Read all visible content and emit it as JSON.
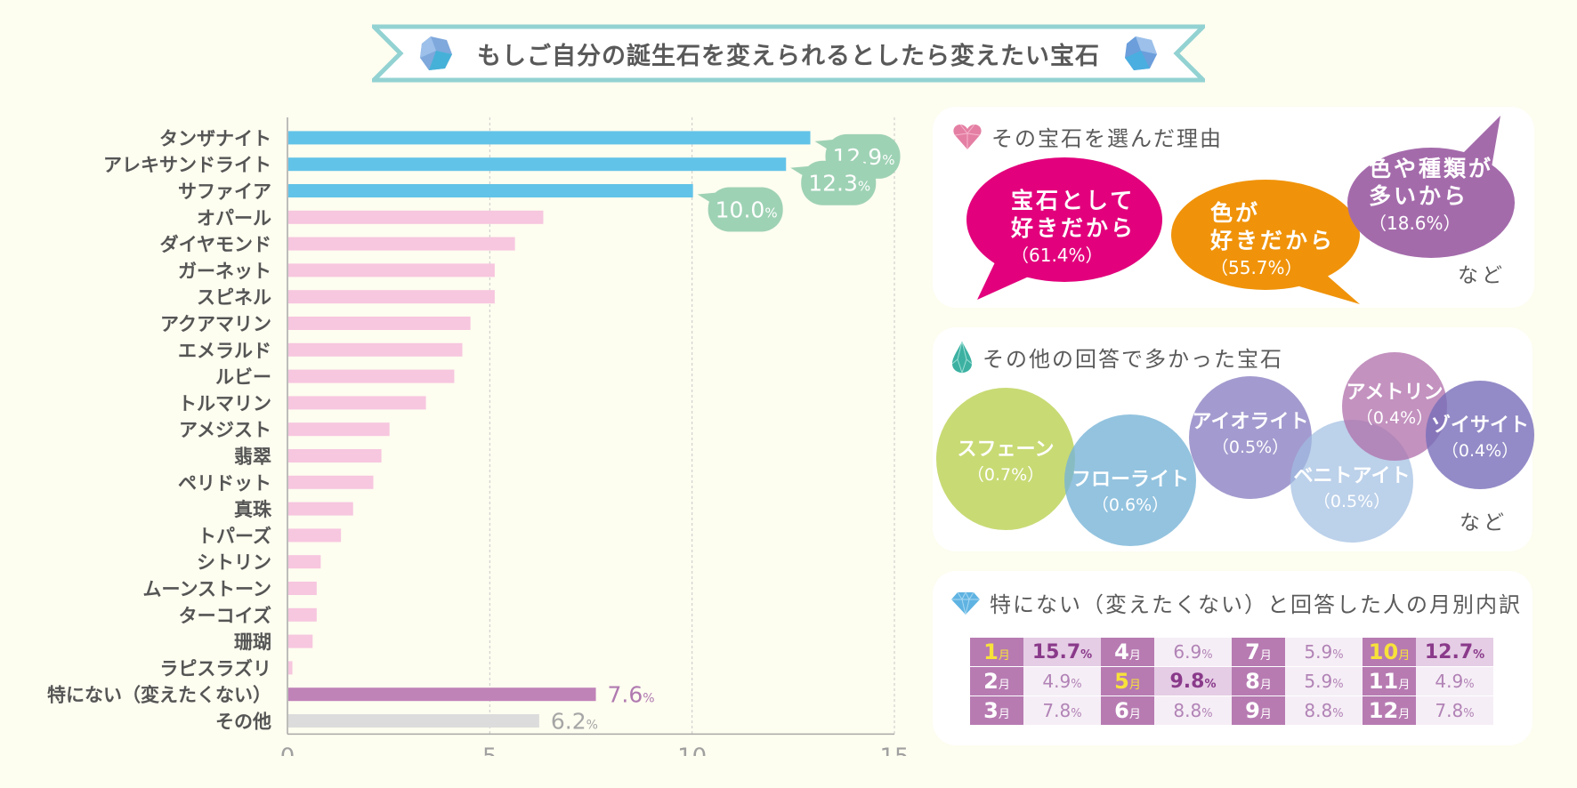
{
  "title": "もしご自分の誕生石を変えられるとしたら変えたい宝石",
  "colors": {
    "background": "#fdfdf0",
    "top3_bar": "#62c3e8",
    "normal_bar": "#f7c6df",
    "none_bar": "#c083b8",
    "other_bar": "#dcdcdc",
    "value_bubble": "#9ed2b4",
    "ribbon_border": "#93d2d2"
  },
  "chart_data": {
    "type": "bar",
    "orientation": "horizontal",
    "title": "もしご自分の誕生石を変えられるとしたら変えたい宝石",
    "xlabel": "",
    "ylabel": "",
    "unit": "%",
    "xlim": [
      0,
      15
    ],
    "xticks": [
      "0",
      "5",
      "10",
      "15"
    ],
    "grid": true,
    "categories": [
      "タンザナイト",
      "アレキサンドライト",
      "サファイア",
      "オパール",
      "ダイヤモンド",
      "ガーネット",
      "スピネル",
      "アクアマリン",
      "エメラルド",
      "ルビー",
      "トルマリン",
      "アメジスト",
      "翡翠",
      "ペリドット",
      "真珠",
      "トパーズ",
      "シトリン",
      "ムーンストーン",
      "ターコイズ",
      "珊瑚",
      "ラピスラズリ",
      "特にない（変えたくない）",
      "その他"
    ],
    "values": [
      12.9,
      12.3,
      10.0,
      6.3,
      5.6,
      5.1,
      5.1,
      4.5,
      4.3,
      4.1,
      3.4,
      2.5,
      2.3,
      2.1,
      1.6,
      1.3,
      0.8,
      0.7,
      0.7,
      0.6,
      0.1,
      7.6,
      6.2
    ],
    "bar_groups": [
      "top",
      "top",
      "top",
      "normal",
      "normal",
      "normal",
      "normal",
      "normal",
      "normal",
      "normal",
      "normal",
      "normal",
      "normal",
      "normal",
      "normal",
      "normal",
      "normal",
      "normal",
      "normal",
      "normal",
      "normal",
      "none",
      "other"
    ],
    "data_labels": [
      {
        "index": 0,
        "value": "12.9",
        "unit": "%",
        "style": "bubble"
      },
      {
        "index": 1,
        "value": "12.3",
        "unit": "%",
        "style": "bubble"
      },
      {
        "index": 2,
        "value": "10.0",
        "unit": "%",
        "style": "bubble"
      },
      {
        "index": 21,
        "value": "7.6",
        "unit": "%",
        "style": "text-purple"
      },
      {
        "index": 22,
        "value": "6.2",
        "unit": "%",
        "style": "text-gray"
      }
    ]
  },
  "reasons_panel": {
    "heading": "その宝石を選んだ理由",
    "icon": "heart-gem-icon",
    "items": [
      {
        "line1": "宝石として",
        "line2": "好きだから",
        "pct": "（61.4%）",
        "color": "#e2007c"
      },
      {
        "line1": "色が",
        "line2": "好きだから",
        "pct": "（55.7%）",
        "color": "#f0930a"
      },
      {
        "line1": "色や種類が",
        "line2": "多いから",
        "pct": "（18.6%）",
        "color": "#a46bab"
      }
    ],
    "footer": "など"
  },
  "others_panel": {
    "heading": "その他の回答で多かった宝石",
    "icon": "teardrop-gem-icon",
    "items": [
      {
        "name": "スフェーン",
        "pct": "（0.7%）",
        "color": "rgba(190,212,92,0.85)"
      },
      {
        "name": "フローライト",
        "pct": "（0.6%）",
        "color": "rgba(120,180,215,0.8)"
      },
      {
        "name": "アイオライト",
        "pct": "（0.5%）",
        "color": "rgba(140,130,195,0.8)"
      },
      {
        "name": "ベニトアイト",
        "pct": "（0.5%）",
        "color": "rgba(160,190,225,0.7)"
      },
      {
        "name": "アメトリン",
        "pct": "（0.4%）",
        "color": "rgba(175,110,170,0.75)"
      },
      {
        "name": "ゾイサイト",
        "pct": "（0.4%）",
        "color": "rgba(120,110,185,0.8)"
      }
    ],
    "footer": "など"
  },
  "months_panel": {
    "heading": "特にない（変えたくない）と回答した人の月別内訳",
    "icon": "diamond-icon",
    "month_unit": "月",
    "value_unit": "%",
    "rows": [
      [
        {
          "m": "1",
          "v": "15.7",
          "hl": true
        },
        {
          "m": "4",
          "v": "6.9",
          "hl": false
        },
        {
          "m": "7",
          "v": "5.9",
          "hl": false
        },
        {
          "m": "10",
          "v": "12.7",
          "hl": true
        }
      ],
      [
        {
          "m": "2",
          "v": "4.9",
          "hl": false
        },
        {
          "m": "5",
          "v": "9.8",
          "hl": true
        },
        {
          "m": "8",
          "v": "5.9",
          "hl": false
        },
        {
          "m": "11",
          "v": "4.9",
          "hl": false
        }
      ],
      [
        {
          "m": "3",
          "v": "7.8",
          "hl": false
        },
        {
          "m": "6",
          "v": "8.8",
          "hl": false
        },
        {
          "m": "9",
          "v": "8.8",
          "hl": false
        },
        {
          "m": "12",
          "v": "7.8",
          "hl": false
        }
      ]
    ]
  }
}
